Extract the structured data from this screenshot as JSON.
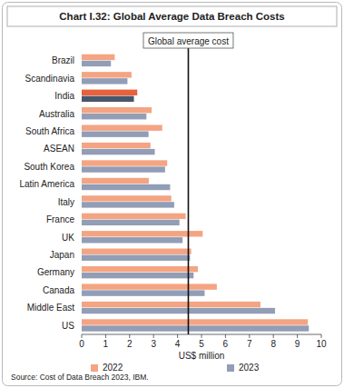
{
  "chart_data": {
    "type": "bar",
    "orientation": "horizontal",
    "title": "Chart I.32: Global Average Data Breach Costs",
    "categories": [
      "Brazil",
      "Scandinavia",
      "India",
      "Australia",
      "South Africa",
      "ASEAN",
      "South Korea",
      "Latin America",
      "Italy",
      "France",
      "UK",
      "Japan",
      "Germany",
      "Canada",
      "Middle East",
      "US"
    ],
    "series": [
      {
        "name": "2022",
        "color": "#f4a482",
        "colors": [
          "#f4a482",
          "#f4a482",
          "#e8613c",
          "#f4a482",
          "#f4a482",
          "#f4a482",
          "#f4a482",
          "#f4a482",
          "#f4a482",
          "#f4a482",
          "#f4a482",
          "#f4a482",
          "#f4a482",
          "#f4a482",
          "#f4a482",
          "#f4a482"
        ],
        "values": [
          1.38,
          2.08,
          2.32,
          2.92,
          3.36,
          2.87,
          3.57,
          2.8,
          3.74,
          4.34,
          5.05,
          4.57,
          4.85,
          5.64,
          7.46,
          9.44
        ]
      },
      {
        "name": "2023",
        "color": "#929db6",
        "colors": [
          "#929db6",
          "#929db6",
          "#4a5568",
          "#929db6",
          "#929db6",
          "#929db6",
          "#929db6",
          "#929db6",
          "#929db6",
          "#929db6",
          "#929db6",
          "#929db6",
          "#929db6",
          "#929db6",
          "#929db6",
          "#929db6"
        ],
        "values": [
          1.22,
          1.91,
          2.18,
          2.7,
          2.79,
          3.05,
          3.48,
          3.69,
          3.86,
          4.08,
          4.21,
          4.52,
          4.67,
          5.13,
          8.07,
          9.48
        ]
      }
    ],
    "reference_line": {
      "label": "Global average cost",
      "value": 4.45
    },
    "x_label": "US$ million",
    "xlim": [
      0,
      10
    ],
    "xticks": [
      0,
      1,
      2,
      3,
      4,
      5,
      6,
      7,
      8,
      9,
      10
    ],
    "grid": false,
    "legend": "bottom",
    "source": "Source: Cost of Data Breach 2023, IBM."
  }
}
